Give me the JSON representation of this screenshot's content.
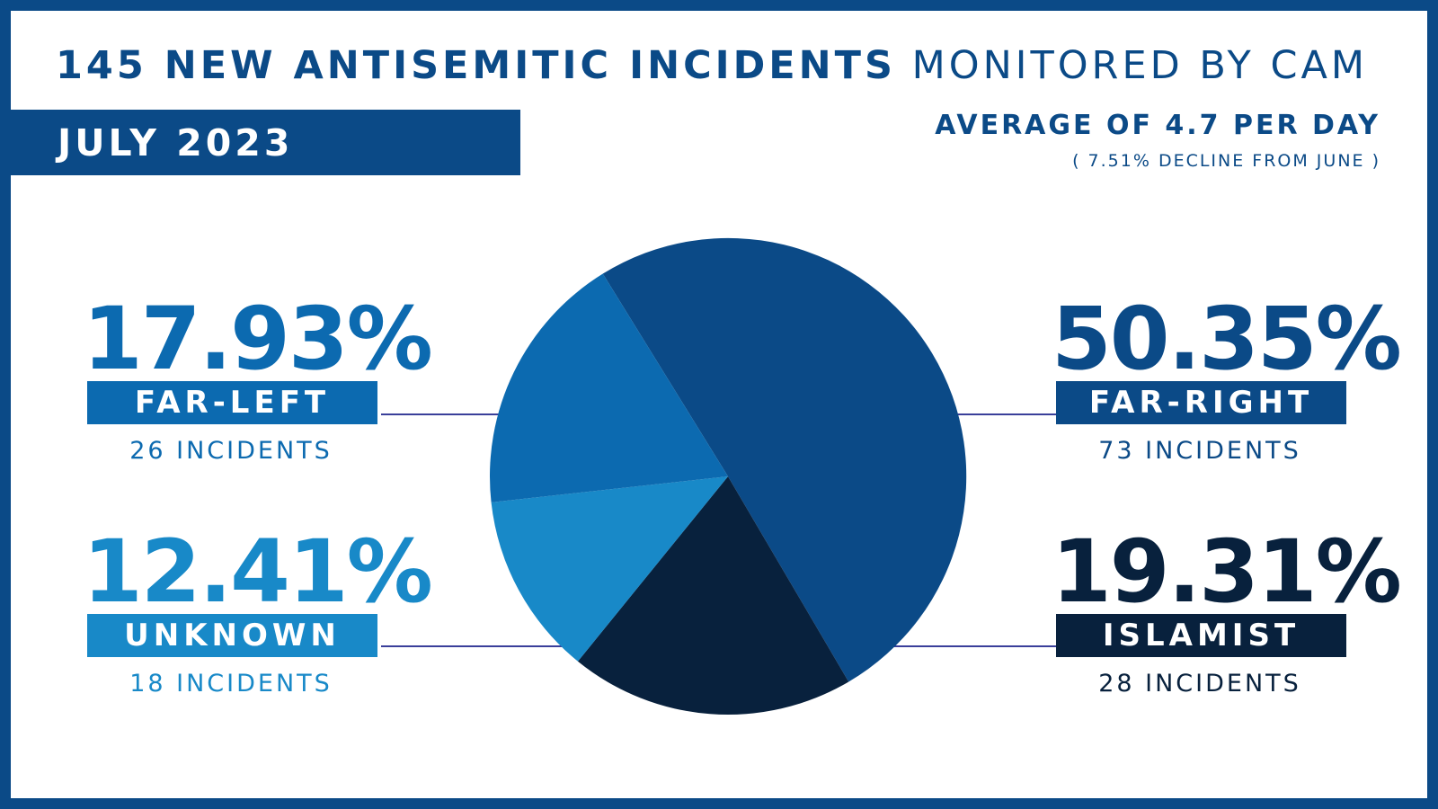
{
  "title": {
    "bold": "145 NEW ANTISEMITIC INCIDENTS",
    "light": "MONITORED BY CAM"
  },
  "period": "JULY 2023",
  "average": {
    "headline": "AVERAGE OF 4.7 PER DAY",
    "note": "( 7.51% DECLINE FROM JUNE )"
  },
  "colors": {
    "brand": "#0b4a87",
    "far_left": "#0c6ab0",
    "unknown": "#1889c8",
    "far_right": "#0b4a87",
    "islamist": "#08213d",
    "connector": "#3a3f9a"
  },
  "chart_data": {
    "type": "pie",
    "title": "145 NEW ANTISEMITIC INCIDENTS MONITORED BY CAM",
    "total": 145,
    "slices": [
      {
        "key": "far_right",
        "label": "FAR-RIGHT",
        "percent": "50.35%",
        "value": 50.35,
        "incidents": 73,
        "count_label": "73 INCIDENTS"
      },
      {
        "key": "islamist",
        "label": "ISLAMIST",
        "percent": "19.31%",
        "value": 19.31,
        "incidents": 28,
        "count_label": "28 INCIDENTS"
      },
      {
        "key": "unknown",
        "label": "UNKNOWN",
        "percent": "12.41%",
        "value": 12.41,
        "incidents": 18,
        "count_label": "18 INCIDENTS"
      },
      {
        "key": "far_left",
        "label": "FAR-LEFT",
        "percent": "17.93%",
        "value": 17.93,
        "incidents": 26,
        "count_label": "26 INCIDENTS"
      }
    ]
  }
}
